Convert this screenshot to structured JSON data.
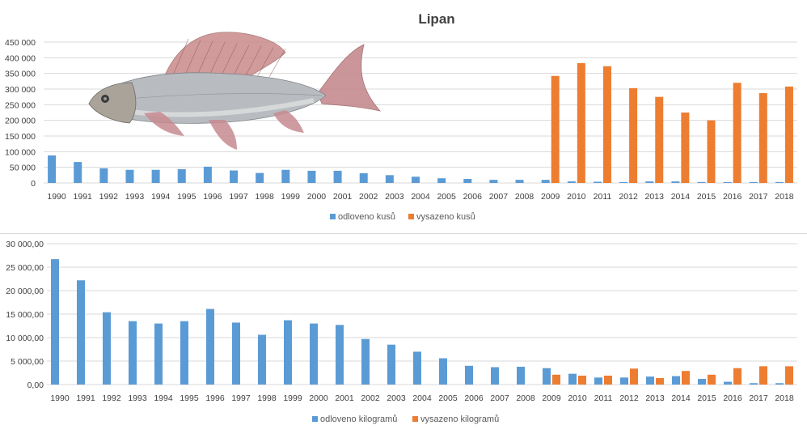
{
  "colors": {
    "blue": "#5b9bd5",
    "orange": "#ed7d31",
    "grid": "#d9d9d9",
    "text": "#404040"
  },
  "fish_image": {
    "icon": "grayling-fish-illustration"
  },
  "chart_data": [
    {
      "type": "bar",
      "title": "Lipan",
      "xlabel": "",
      "ylabel": "",
      "ylim": [
        0,
        450000
      ],
      "yticks": [
        0,
        50000,
        100000,
        150000,
        200000,
        250000,
        300000,
        350000,
        400000,
        450000
      ],
      "ytick_labels": [
        "0",
        "50 000",
        "100 000",
        "150 000",
        "200 000",
        "250 000",
        "300 000",
        "350 000",
        "400 000",
        "450 000"
      ],
      "grid": true,
      "legend": "bottom",
      "categories": [
        "1990",
        "1991",
        "1992",
        "1993",
        "1994",
        "1995",
        "1996",
        "1997",
        "1998",
        "1999",
        "2000",
        "2001",
        "2002",
        "2003",
        "2004",
        "2005",
        "2006",
        "2007",
        "2008",
        "2009",
        "2010",
        "2011",
        "2012",
        "2013",
        "2014",
        "2015",
        "2016",
        "2017",
        "2018"
      ],
      "series": [
        {
          "name": "odloveno kusů",
          "color": "#5b9bd5",
          "values": [
            88000,
            67000,
            47000,
            42000,
            42000,
            44000,
            52000,
            40000,
            32000,
            42000,
            39000,
            39000,
            31000,
            25000,
            20000,
            15000,
            13000,
            10000,
            10000,
            10000,
            5000,
            4000,
            3000,
            5000,
            5000,
            3000,
            3000,
            3000,
            3000
          ]
        },
        {
          "name": "vysazeno kusů",
          "color": "#ed7d31",
          "values": [
            0,
            0,
            0,
            0,
            0,
            0,
            0,
            0,
            0,
            0,
            0,
            0,
            0,
            0,
            0,
            0,
            0,
            0,
            0,
            342000,
            383000,
            373000,
            303000,
            275000,
            225000,
            200000,
            320000,
            287000,
            308000
          ]
        }
      ]
    },
    {
      "type": "bar",
      "title": "",
      "xlabel": "",
      "ylabel": "",
      "ylim": [
        0,
        30000
      ],
      "yticks": [
        0,
        5000,
        10000,
        15000,
        20000,
        25000,
        30000
      ],
      "ytick_labels": [
        "0,00",
        "5 000,00",
        "10 000,00",
        "15 000,00",
        "20 000,00",
        "25 000,00",
        "30 000,00"
      ],
      "grid": true,
      "legend": "bottom",
      "categories": [
        "1990",
        "1991",
        "1992",
        "1993",
        "1994",
        "1995",
        "1996",
        "1997",
        "1998",
        "1999",
        "2000",
        "2001",
        "2002",
        "2003",
        "2004",
        "2005",
        "2006",
        "2007",
        "2008",
        "2009",
        "2010",
        "2011",
        "2012",
        "2013",
        "2014",
        "2015",
        "2016",
        "2017",
        "2018"
      ],
      "series": [
        {
          "name": "odloveno kilogramů",
          "color": "#5b9bd5",
          "values": [
            26700,
            22200,
            15400,
            13500,
            13000,
            13500,
            16100,
            13200,
            10600,
            13700,
            13000,
            12700,
            9700,
            8500,
            7000,
            5600,
            4000,
            3700,
            3800,
            3500,
            2300,
            1500,
            1500,
            1700,
            1800,
            1200,
            600,
            300,
            300
          ]
        },
        {
          "name": "vysazeno kilogramů",
          "color": "#ed7d31",
          "values": [
            0,
            0,
            0,
            0,
            0,
            0,
            0,
            0,
            0,
            0,
            0,
            0,
            0,
            0,
            0,
            0,
            0,
            0,
            0,
            2100,
            1900,
            1900,
            3400,
            1400,
            2900,
            2100,
            3500,
            3900,
            3900
          ]
        }
      ]
    }
  ]
}
